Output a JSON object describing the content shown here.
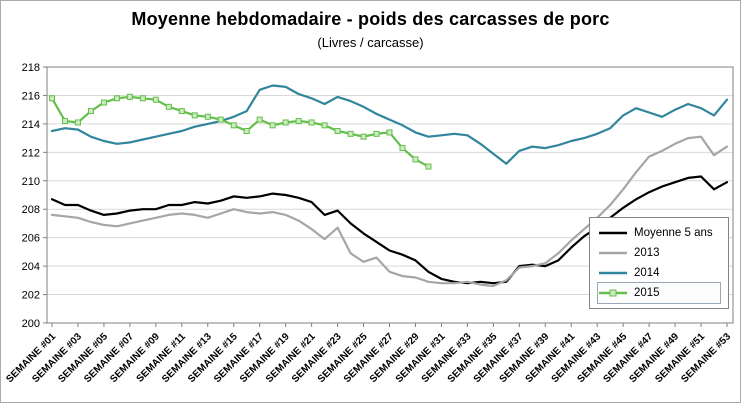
{
  "chart_data": {
    "type": "line",
    "title": "Moyenne hebdomadaire - poids des carcasses de porc",
    "subtitle": "(Livres / carcasse)",
    "weeks": 53,
    "x_labels": [
      "SEMAINE #01",
      "SEMAINE #03",
      "SEMAINE #05",
      "SEMAINE #07",
      "SEMAINE #09",
      "SEMAINE #11",
      "SEMAINE #13",
      "SEMAINE #15",
      "SEMAINE #17",
      "SEMAINE #19",
      "SEMAINE #21",
      "SEMAINE #23",
      "SEMAINE #25",
      "SEMAINE #27",
      "SEMAINE #29",
      "SEMAINE #31",
      "SEMAINE #33",
      "SEMAINE #35",
      "SEMAINE #37",
      "SEMAINE #39",
      "SEMAINE #41",
      "SEMAINE #43",
      "SEMAINE #45",
      "SEMAINE #47",
      "SEMAINE #49",
      "SEMAINE #51",
      "SEMAINE #53"
    ],
    "ylim": [
      200,
      218
    ],
    "yticks": [
      200,
      202,
      204,
      206,
      208,
      210,
      212,
      214,
      216,
      218
    ],
    "grid": true,
    "legend_position": "inside-bottom-right",
    "series": [
      {
        "name": "Moyenne 5 ans",
        "color": "#000000",
        "values": [
          208.7,
          208.3,
          208.3,
          207.9,
          207.6,
          207.7,
          207.9,
          208.0,
          208.0,
          208.3,
          208.3,
          208.5,
          208.4,
          208.6,
          208.9,
          208.8,
          208.9,
          209.1,
          209.0,
          208.8,
          208.5,
          207.6,
          207.9,
          207.0,
          206.3,
          205.7,
          205.1,
          204.8,
          204.4,
          203.6,
          203.1,
          202.9,
          202.8,
          202.9,
          202.8,
          202.9,
          204.0,
          204.1,
          204.0,
          204.4,
          205.3,
          206.1,
          206.7,
          207.4,
          208.1,
          208.7,
          209.2,
          209.6,
          209.9,
          210.2,
          210.3,
          209.4,
          209.9
        ]
      },
      {
        "name": "2013",
        "color": "#A6A6A6",
        "values": [
          207.6,
          207.5,
          207.4,
          207.1,
          206.9,
          206.8,
          207.0,
          207.2,
          207.4,
          207.6,
          207.7,
          207.6,
          207.4,
          207.7,
          208.0,
          207.8,
          207.7,
          207.8,
          207.6,
          207.2,
          206.6,
          205.9,
          206.7,
          204.9,
          204.3,
          204.6,
          203.6,
          203.3,
          203.2,
          202.9,
          202.8,
          202.8,
          202.9,
          202.7,
          202.6,
          203.0,
          203.9,
          204.0,
          204.2,
          204.9,
          205.8,
          206.6,
          207.4,
          208.3,
          209.4,
          210.6,
          211.7,
          212.1,
          212.6,
          213.0,
          213.1,
          211.8,
          212.4
        ]
      },
      {
        "name": "2014",
        "color": "#31859C",
        "values": [
          213.5,
          213.7,
          213.6,
          213.1,
          212.8,
          212.6,
          212.7,
          212.9,
          213.1,
          213.3,
          213.5,
          213.8,
          214.0,
          214.2,
          214.5,
          214.9,
          216.4,
          216.7,
          216.6,
          216.1,
          215.8,
          215.4,
          215.9,
          215.6,
          215.2,
          214.7,
          214.3,
          213.9,
          213.4,
          213.1,
          213.2,
          213.3,
          213.2,
          212.6,
          211.9,
          211.2,
          212.1,
          212.4,
          212.3,
          212.5,
          212.8,
          213.0,
          213.3,
          213.7,
          214.6,
          215.1,
          214.8,
          214.5,
          215.0,
          215.4,
          215.1,
          214.6,
          215.7
        ]
      },
      {
        "name": "2015",
        "color": "#63BE4A",
        "marker": "square",
        "marker_fill": "#CDEBC1",
        "selected": true,
        "values": [
          215.8,
          214.2,
          214.1,
          214.9,
          215.5,
          215.8,
          215.9,
          215.8,
          215.7,
          215.2,
          214.9,
          214.6,
          214.5,
          214.3,
          213.9,
          213.5,
          214.3,
          213.9,
          214.1,
          214.2,
          214.1,
          213.9,
          213.5,
          213.3,
          213.1,
          213.3,
          213.4,
          212.3,
          211.5,
          211.0
        ]
      }
    ]
  }
}
